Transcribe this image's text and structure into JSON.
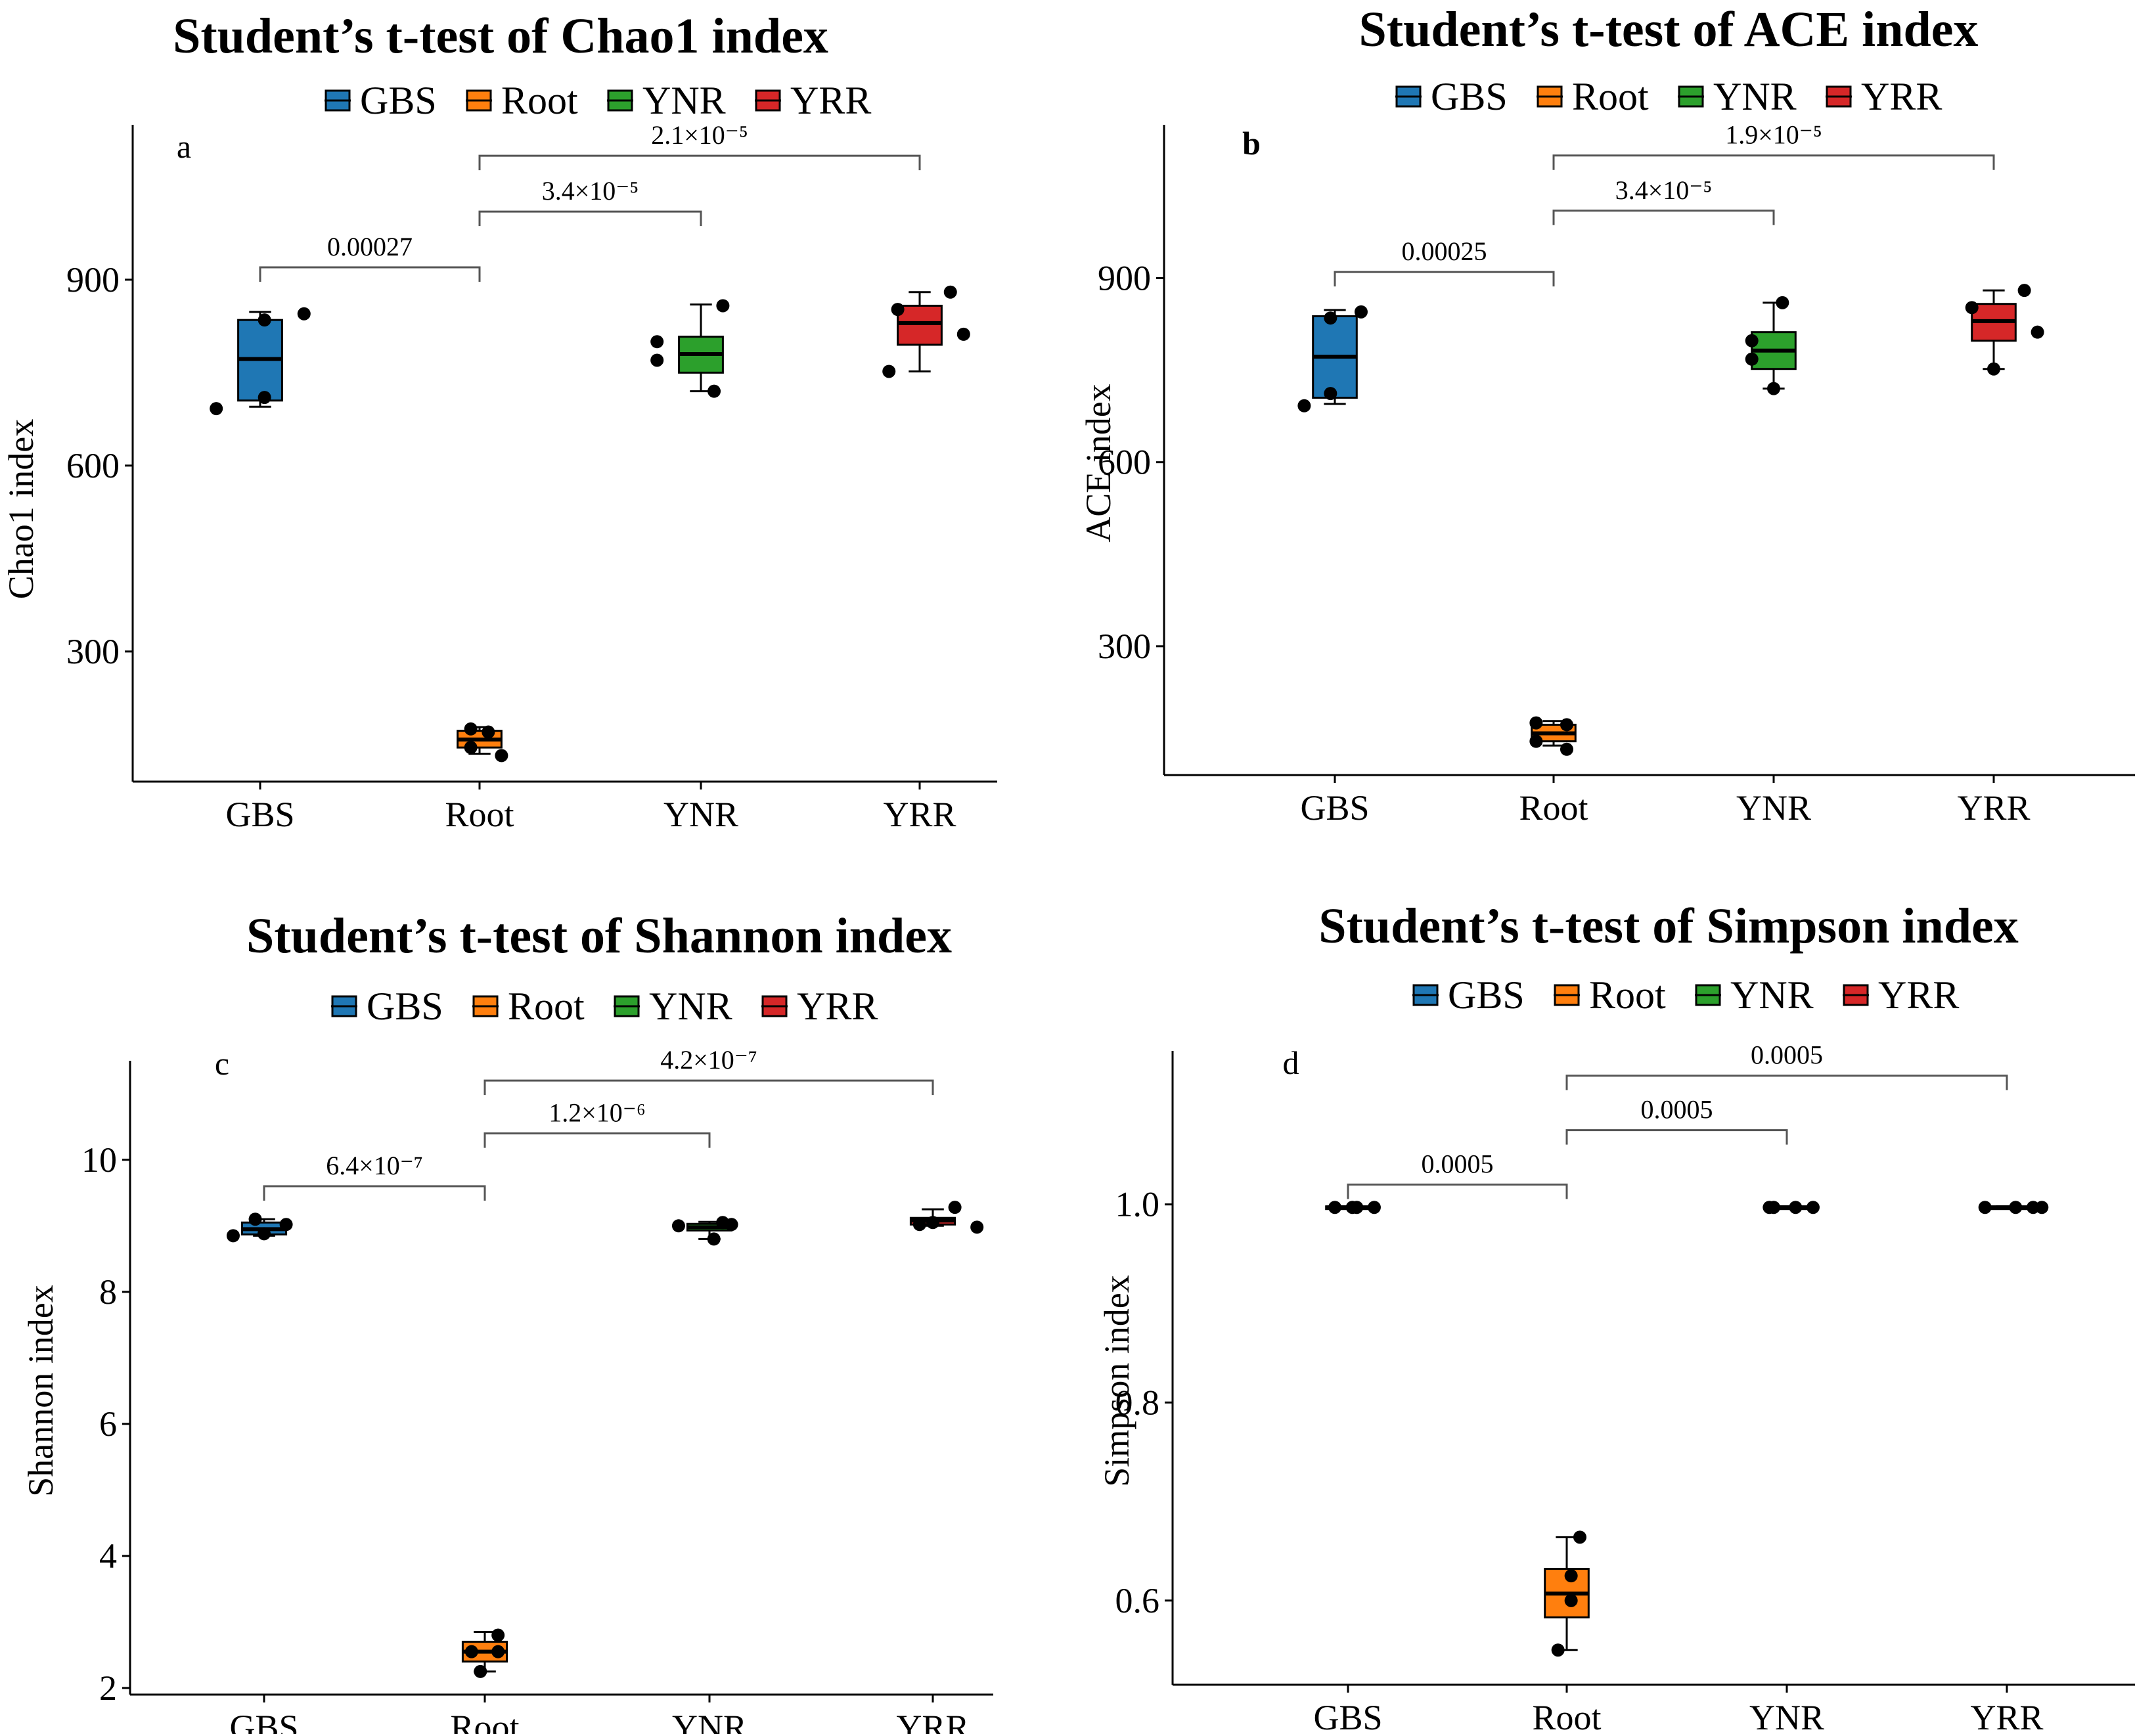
{
  "figure": {
    "categories": [
      "GBS",
      "Root",
      "YNR",
      "YRR"
    ],
    "colors": {
      "GBS": "#1F77B4",
      "Root": "#FF7F0E",
      "YNR": "#2CA02C",
      "YRR": "#D62728"
    },
    "legend_labels": [
      "GBS",
      "Root",
      "YNR",
      "YRR"
    ]
  },
  "chart_data": [
    {
      "type": "boxplot",
      "panel": "a",
      "title": "Student’s t-test of Chao1 index",
      "xlabel": "",
      "ylabel": "Chao1 index",
      "categories": [
        "GBS",
        "Root",
        "YNR",
        "YRR"
      ],
      "ylim": [
        90,
        1150
      ],
      "yticks": [
        300,
        600,
        900
      ],
      "ytick_labels": [
        "300",
        "600",
        "900"
      ],
      "boxes": [
        {
          "group": "GBS",
          "min": 695,
          "q1": 705,
          "median": 772,
          "q3": 835,
          "max": 848
        },
        {
          "group": "Root",
          "min": 135,
          "q1": 145,
          "median": 158,
          "q3": 172,
          "max": 178
        },
        {
          "group": "YNR",
          "min": 720,
          "q1": 750,
          "median": 780,
          "q3": 808,
          "max": 860
        },
        {
          "group": "YRR",
          "min": 752,
          "q1": 795,
          "median": 830,
          "q3": 858,
          "max": 880
        }
      ],
      "points": [
        {
          "group": "GBS",
          "values": [
            692,
            710,
            835,
            845
          ],
          "offsets": [
            -0.2,
            0.02,
            0.02,
            0.2
          ]
        },
        {
          "group": "Root",
          "values": [
            145,
            175,
            170,
            132
          ],
          "offsets": [
            -0.04,
            -0.04,
            0.04,
            0.1
          ]
        },
        {
          "group": "YNR",
          "values": [
            800,
            770,
            720,
            858
          ],
          "offsets": [
            -0.2,
            -0.2,
            0.06,
            0.1
          ]
        },
        {
          "group": "YRR",
          "values": [
            852,
            752,
            880,
            812
          ],
          "offsets": [
            -0.1,
            -0.14,
            0.14,
            0.2
          ]
        }
      ],
      "brackets": [
        {
          "from": "GBS",
          "to": "Root",
          "y": 920,
          "label": "0.00027"
        },
        {
          "from": "Root",
          "to": "YNR",
          "y": 1010,
          "label": "3.4×10⁻⁵"
        },
        {
          "from": "Root",
          "to": "YRR",
          "y": 1100,
          "label": "2.1×10⁻⁵"
        }
      ]
    },
    {
      "type": "boxplot",
      "panel": "b",
      "title": "Student’s t-test of ACE index",
      "xlabel": "",
      "ylabel": "ACE index",
      "categories": [
        "GBS",
        "Root",
        "YNR",
        "YRR"
      ],
      "ylim": [
        90,
        1150
      ],
      "yticks": [
        300,
        600,
        900
      ],
      "ytick_labels": [
        "300",
        "600",
        "900"
      ],
      "boxes": [
        {
          "group": "GBS",
          "min": 695,
          "q1": 705,
          "median": 772,
          "q3": 838,
          "max": 848
        },
        {
          "group": "Root",
          "min": 138,
          "q1": 145,
          "median": 158,
          "q3": 172,
          "max": 178
        },
        {
          "group": "YNR",
          "min": 720,
          "q1": 752,
          "median": 782,
          "q3": 812,
          "max": 860
        },
        {
          "group": "YRR",
          "min": 752,
          "q1": 798,
          "median": 830,
          "q3": 858,
          "max": 880
        }
      ],
      "points": [
        {
          "group": "GBS",
          "values": [
            692,
            712,
            835,
            845
          ],
          "offsets": [
            -0.14,
            -0.02,
            -0.02,
            0.12
          ]
        },
        {
          "group": "Root",
          "values": [
            145,
            175,
            172,
            132
          ],
          "offsets": [
            -0.08,
            -0.08,
            0.06,
            0.06
          ]
        },
        {
          "group": "YNR",
          "values": [
            798,
            768,
            720,
            860
          ],
          "offsets": [
            -0.1,
            -0.1,
            0.0,
            0.04
          ]
        },
        {
          "group": "YRR",
          "values": [
            852,
            752,
            880,
            812
          ],
          "offsets": [
            -0.1,
            0.0,
            0.14,
            0.2
          ]
        }
      ],
      "brackets": [
        {
          "from": "GBS",
          "to": "Root",
          "y": 910,
          "label": "0.00025"
        },
        {
          "from": "Root",
          "to": "YNR",
          "y": 1010,
          "label": "3.4×10⁻⁵"
        },
        {
          "from": "Root",
          "to": "YRR",
          "y": 1100,
          "label": "1.9×10⁻⁵"
        }
      ]
    },
    {
      "type": "boxplot",
      "panel": "c",
      "title": "Student’s t-test of Shannon index",
      "xlabel": "",
      "ylabel": "Shannon index",
      "categories": [
        "GBS",
        "Root",
        "YNR",
        "YRR"
      ],
      "ylim": [
        1.9,
        11.5
      ],
      "yticks": [
        2,
        4,
        6,
        8,
        10
      ],
      "ytick_labels": [
        "2",
        "4",
        "6",
        "8",
        "10"
      ],
      "boxes": [
        {
          "group": "GBS",
          "min": 8.85,
          "q1": 8.87,
          "median": 8.95,
          "q3": 9.05,
          "max": 9.1
        },
        {
          "group": "Root",
          "min": 2.25,
          "q1": 2.4,
          "median": 2.55,
          "q3": 2.7,
          "max": 2.85
        },
        {
          "group": "YNR",
          "min": 8.8,
          "q1": 8.93,
          "median": 8.98,
          "q3": 9.03,
          "max": 9.06
        },
        {
          "group": "YRR",
          "min": 9.0,
          "q1": 9.02,
          "median": 9.08,
          "q3": 9.12,
          "max": 9.25
        }
      ],
      "points": [
        {
          "group": "GBS",
          "values": [
            8.85,
            8.88,
            9.1,
            9.02
          ],
          "offsets": [
            -0.14,
            0.0,
            -0.04,
            0.1
          ]
        },
        {
          "group": "Root",
          "values": [
            2.25,
            2.55,
            2.8,
            2.55
          ],
          "offsets": [
            -0.02,
            -0.06,
            0.06,
            0.06
          ]
        },
        {
          "group": "YNR",
          "values": [
            9.0,
            8.8,
            9.05,
            9.02
          ],
          "offsets": [
            -0.14,
            0.02,
            0.06,
            0.1
          ]
        },
        {
          "group": "YRR",
          "values": [
            9.02,
            9.05,
            9.28,
            8.98
          ],
          "offsets": [
            -0.06,
            0.0,
            0.1,
            0.2
          ]
        }
      ],
      "brackets": [
        {
          "from": "GBS",
          "to": "Root",
          "y": 9.6,
          "label": "6.4×10⁻⁷"
        },
        {
          "from": "Root",
          "to": "YNR",
          "y": 10.4,
          "label": "1.2×10⁻⁶"
        },
        {
          "from": "Root",
          "to": "YRR",
          "y": 11.2,
          "label": "4.2×10⁻⁷"
        }
      ]
    },
    {
      "type": "boxplot",
      "panel": "d",
      "title": "Student’s t-test of Simpson index",
      "xlabel": "",
      "ylabel": "Simpson index",
      "categories": [
        "GBS",
        "Root",
        "YNR",
        "YRR"
      ],
      "ylim": [
        0.515,
        1.155
      ],
      "yticks": [
        0.6,
        0.8,
        1.0
      ],
      "ytick_labels": [
        "0.6",
        "0.8",
        "1.0"
      ],
      "boxes": [
        {
          "group": "GBS",
          "min": 0.996,
          "q1": 0.997,
          "median": 0.997,
          "q3": 0.998,
          "max": 0.998
        },
        {
          "group": "Root",
          "min": 0.55,
          "q1": 0.583,
          "median": 0.607,
          "q3": 0.632,
          "max": 0.664
        },
        {
          "group": "YNR",
          "min": 0.996,
          "q1": 0.997,
          "median": 0.997,
          "q3": 0.998,
          "max": 0.998
        },
        {
          "group": "YRR",
          "min": 0.996,
          "q1": 0.997,
          "median": 0.997,
          "q3": 0.998,
          "max": 0.998
        }
      ],
      "points": [
        {
          "group": "GBS",
          "values": [
            0.997,
            0.997,
            0.997,
            0.997
          ],
          "offsets": [
            -0.06,
            0.02,
            0.04,
            0.12
          ]
        },
        {
          "group": "Root",
          "values": [
            0.55,
            0.6,
            0.625,
            0.664
          ],
          "offsets": [
            -0.04,
            0.02,
            0.02,
            0.06
          ]
        },
        {
          "group": "YNR",
          "values": [
            0.997,
            0.997,
            0.997,
            0.997
          ],
          "offsets": [
            -0.08,
            -0.06,
            0.04,
            0.12
          ]
        },
        {
          "group": "YRR",
          "values": [
            0.997,
            0.997,
            0.997,
            0.997
          ],
          "offsets": [
            -0.1,
            0.04,
            0.12,
            0.16
          ]
        }
      ],
      "brackets": [
        {
          "from": "GBS",
          "to": "Root",
          "y": 1.02,
          "label": "0.0005"
        },
        {
          "from": "Root",
          "to": "YNR",
          "y": 1.075,
          "label": "0.0005"
        },
        {
          "from": "Root",
          "to": "YRR",
          "y": 1.13,
          "label": "0.0005"
        }
      ]
    }
  ]
}
